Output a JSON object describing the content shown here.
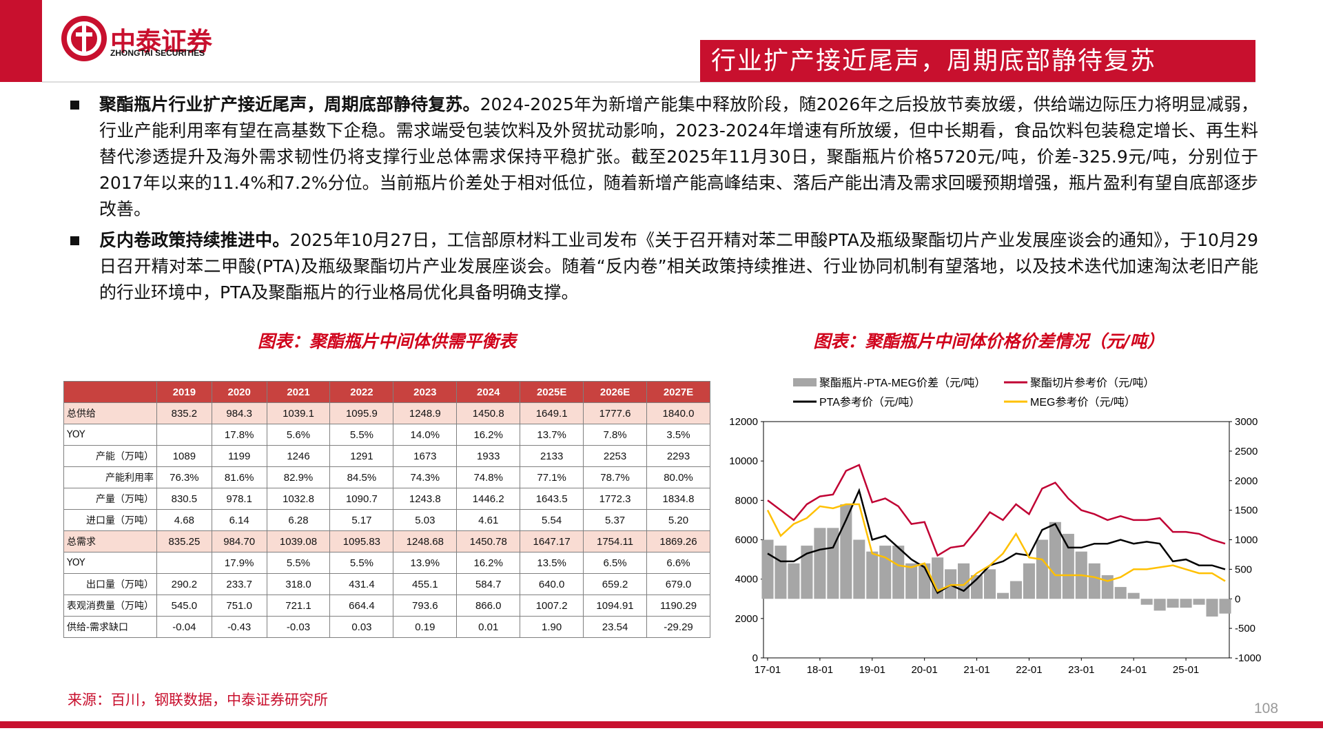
{
  "header": {
    "logo_name": "中泰证券",
    "logo_sub": "ZHONGTAI SECURITIES",
    "title": "行业扩产接近尾声，周期底部静待复苏"
  },
  "bullets": [
    {
      "bold": "聚酯瓶片行业扩产接近尾声，周期底部静待复苏。",
      "text": "2024-2025年为新增产能集中释放阶段，随2026年之后投放节奏放缓，供给端边际压力将明显减弱，行业产能利用率有望在高基数下企稳。需求端受包装饮料及外贸扰动影响，2023-2024年增速有所放缓，但中长期看，食品饮料包装稳定增长、再生料替代渗透提升及海外需求韧性仍将支撑行业总体需求保持平稳扩张。截至2025年11月30日，聚酯瓶片价格5720元/吨，价差-325.9元/吨，分别位于2017年以来的11.4%和7.2%分位。当前瓶片价差处于相对低位，随着新增产能高峰结束、落后产能出清及需求回暖预期增强，瓶片盈利有望自底部逐步改善。"
    },
    {
      "bold": "反内卷政策持续推进中。",
      "text": "2025年10月27日，工信部原材料工业司发布《关于召开精对苯二甲酸PTA及瓶级聚酯切片产业发展座谈会的通知》，于10月29日召开精对苯二甲酸(PTA)及瓶级聚酯切片产业发展座谈会。随着“反内卷”相关政策持续推进、行业协同机制有望落地，以及技术迭代加速淘汰老旧产能的行业环境中，PTA及聚酯瓶片的行业格局优化具备明确支撑。"
    }
  ],
  "table": {
    "title": "图表：聚酯瓶片中间体供需平衡表",
    "columns": [
      "2019",
      "2020",
      "2021",
      "2022",
      "2023",
      "2024",
      "2025E",
      "2026E",
      "2027E"
    ],
    "rows": [
      {
        "label": "总供给",
        "highlight": true,
        "cells": [
          "835.2",
          "984.3",
          "1039.1",
          "1095.9",
          "1248.9",
          "1450.8",
          "1649.1",
          "1777.6",
          "1840.0"
        ]
      },
      {
        "label": "YOY",
        "cells": [
          null,
          "17.8%",
          "5.6%",
          "5.5%",
          "14.0%",
          "16.2%",
          "13.7%",
          "7.8%",
          "3.5%"
        ]
      },
      {
        "label": "产能（万吨）",
        "cells": [
          "1089",
          "1199",
          "1246",
          "1291",
          "1673",
          "1933",
          "2133",
          "2253",
          "2293"
        ]
      },
      {
        "label": "产能利用率",
        "cells": [
          "76.3%",
          "81.6%",
          "82.9%",
          "84.5%",
          "74.3%",
          "74.8%",
          "77.1%",
          "78.7%",
          "80.0%"
        ]
      },
      {
        "label": "产量（万吨）",
        "cells": [
          "830.5",
          "978.1",
          "1032.8",
          "1090.7",
          "1243.8",
          "1446.2",
          "1643.5",
          "1772.3",
          "1834.8"
        ]
      },
      {
        "label": "进口量（万吨）",
        "cells": [
          "4.68",
          "6.14",
          "6.28",
          "5.17",
          "5.03",
          "4.61",
          "5.54",
          "5.37",
          "5.20"
        ]
      },
      {
        "label": "总需求",
        "highlight": true,
        "cells": [
          "835.25",
          "984.70",
          "1039.08",
          "1095.83",
          "1248.68",
          "1450.78",
          "1647.17",
          "1754.11",
          "1869.26"
        ]
      },
      {
        "label": "YOY",
        "cells": [
          null,
          "17.9%",
          "5.5%",
          "5.5%",
          "13.9%",
          "16.2%",
          "13.5%",
          "6.5%",
          "6.6%"
        ]
      },
      {
        "label": "出口量（万吨）",
        "cells": [
          "290.2",
          "233.7",
          "318.0",
          "431.4",
          "455.1",
          "584.7",
          "640.0",
          "659.2",
          "679.0"
        ]
      },
      {
        "label": "表观消费量（万吨）",
        "cells": [
          "545.0",
          "751.0",
          "721.1",
          "664.4",
          "793.6",
          "866.0",
          "1007.2",
          "1094.91",
          "1190.29"
        ]
      },
      {
        "label": "供给-需求缺口",
        "cells": [
          "-0.04",
          "-0.43",
          "-0.03",
          "0.03",
          "0.19",
          "0.01",
          "1.90",
          "23.54",
          "-29.29"
        ]
      }
    ]
  },
  "chart_data": {
    "type": "line",
    "title": "图表：聚酯瓶片中间体价格价差情况（元/吨）",
    "x": [
      "17-01",
      "17-04",
      "17-07",
      "17-10",
      "18-01",
      "18-04",
      "18-07",
      "18-10",
      "19-01",
      "19-04",
      "19-07",
      "19-10",
      "20-01",
      "20-04",
      "20-07",
      "20-10",
      "21-01",
      "21-04",
      "21-07",
      "21-10",
      "22-01",
      "22-04",
      "22-07",
      "22-10",
      "23-01",
      "23-04",
      "23-07",
      "23-10",
      "24-01",
      "24-04",
      "24-07",
      "24-10",
      "25-01",
      "25-04",
      "25-07",
      "25-10"
    ],
    "xticks": [
      "17-01",
      "18-01",
      "19-01",
      "20-01",
      "21-01",
      "22-01",
      "23-01",
      "24-01",
      "25-01"
    ],
    "ylim": [
      0,
      12000
    ],
    "yticks": [
      0,
      2000,
      4000,
      6000,
      8000,
      10000,
      12000
    ],
    "y2lim": [
      -1000,
      3000
    ],
    "y2ticks": [
      -1000,
      -500,
      0,
      500,
      1000,
      1500,
      2000,
      2500,
      3000
    ],
    "series": [
      {
        "name": "聚酯瓶片-PTA-MEG价差（元/吨）",
        "type": "bar",
        "axis": "y2",
        "color": "#a6a6a6",
        "values": [
          1000,
          900,
          600,
          900,
          1200,
          1200,
          1600,
          1000,
          800,
          900,
          900,
          600,
          600,
          700,
          500,
          600,
          400,
          500,
          100,
          300,
          600,
          1000,
          1300,
          1100,
          800,
          600,
          400,
          200,
          100,
          -100,
          -200,
          -150,
          -150,
          -100,
          -300,
          -250
        ]
      },
      {
        "name": "聚酯切片参考价（元/吨）",
        "color": "#c00033",
        "values": [
          8000,
          7500,
          7000,
          7800,
          8200,
          8300,
          9500,
          9800,
          7900,
          8100,
          7700,
          6800,
          6900,
          5200,
          5600,
          5700,
          6500,
          7400,
          7000,
          7800,
          7300,
          8600,
          8900,
          8100,
          7500,
          7300,
          7000,
          7200,
          7000,
          7000,
          7100,
          6400,
          6400,
          6300,
          6000,
          5800
        ]
      },
      {
        "name": "PTA参考价（元/吨）",
        "color": "#000000",
        "values": [
          5300,
          4900,
          4900,
          5300,
          5500,
          5600,
          7000,
          8500,
          6000,
          6200,
          5600,
          5000,
          4600,
          3300,
          3700,
          3400,
          4000,
          4700,
          4900,
          5300,
          5200,
          6500,
          6800,
          5600,
          5600,
          5800,
          5800,
          6000,
          5800,
          5900,
          5800,
          4900,
          5000,
          4700,
          4700,
          4500
        ]
      },
      {
        "name": "MEG参考价（元/吨）",
        "color": "#ffc000",
        "values": [
          7500,
          6200,
          6800,
          7100,
          7700,
          7600,
          7800,
          7800,
          5300,
          5100,
          4700,
          4600,
          4800,
          3400,
          3700,
          3700,
          4300,
          4700,
          5300,
          6300,
          5100,
          5000,
          4200,
          4200,
          4200,
          4100,
          3900,
          4100,
          4500,
          4500,
          4600,
          4700,
          4500,
          4300,
          4300,
          3900
        ]
      }
    ]
  },
  "source": "来源：百川，钢联数据，中泰证券研究所",
  "page_number": "108"
}
